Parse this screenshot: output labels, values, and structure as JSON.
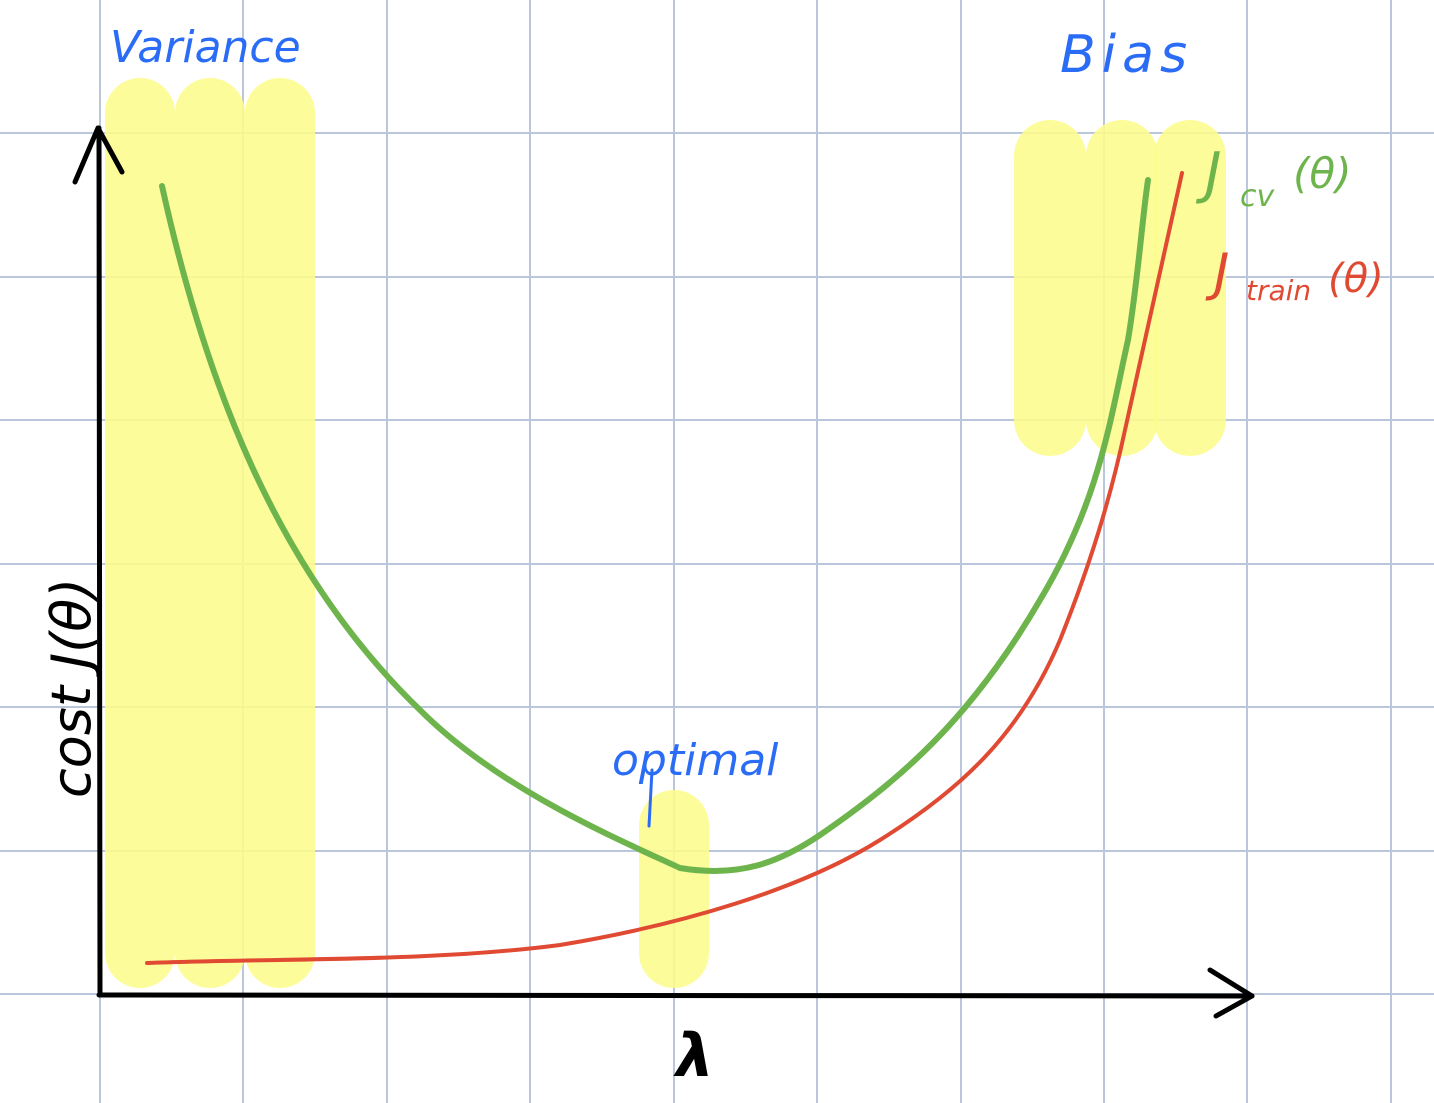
{
  "colors": {
    "background": "#ffffff",
    "grid": "#b9c6dc",
    "highlight": "#fdfc8c",
    "axis": "#000000",
    "annotation": "#2b6cf6",
    "cv_curve": "#6eb44c",
    "train_curve": "#e04a33"
  },
  "annotations": {
    "variance": "Variance",
    "bias": "Bias",
    "optimal": "optimal"
  },
  "axes": {
    "x_label": "λ",
    "y_label": "cost  J(θ)"
  },
  "curves": {
    "cv": {
      "base": "J",
      "sub": "cv",
      "arg": "(θ)"
    },
    "train": {
      "base": "J",
      "sub": "train",
      "arg": "(θ)"
    }
  }
}
